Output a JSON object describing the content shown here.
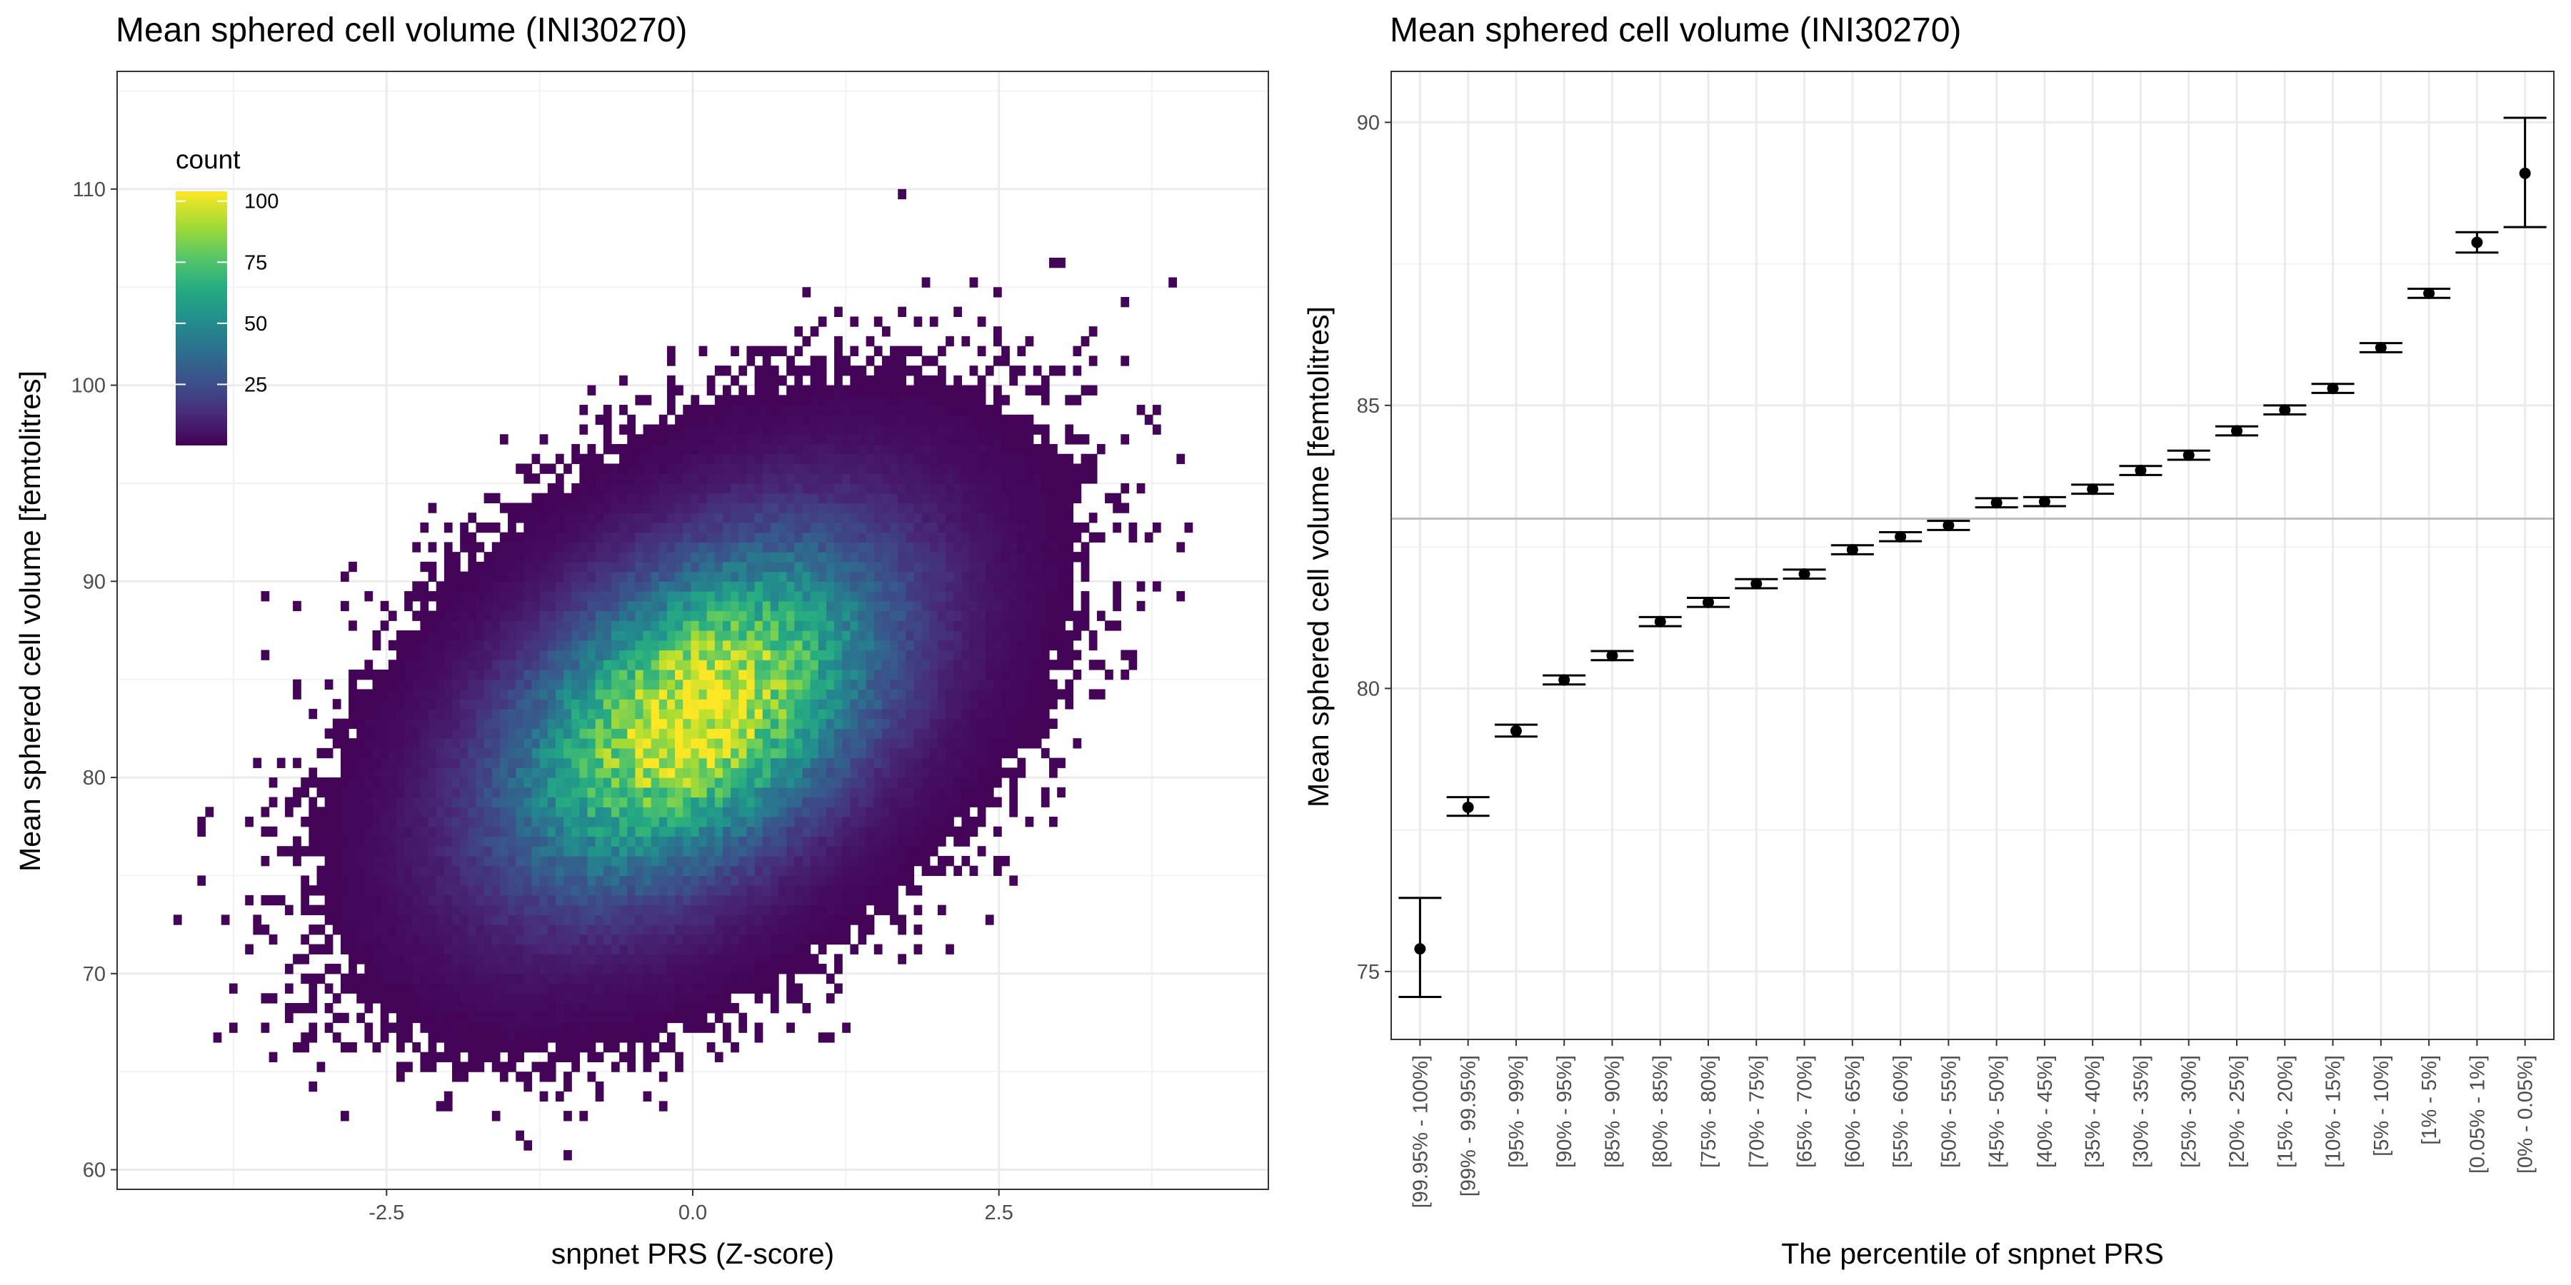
{
  "chart_data": [
    {
      "type": "heatmap",
      "title": "Mean sphered cell volume (INI30270)",
      "xlabel": "snpnet PRS (Z-score)",
      "ylabel": "Mean sphered cell volume [femtolitres]",
      "xlim": [
        -4.7,
        4.7
      ],
      "ylim": [
        59,
        116
      ],
      "x_ticks": [
        -2.5,
        0.0,
        2.5
      ],
      "x_tick_labels": [
        "-2.5",
        "0.0",
        "2.5"
      ],
      "y_ticks": [
        60,
        70,
        80,
        90,
        100,
        110
      ],
      "y_tick_labels": [
        "60",
        "70",
        "80",
        "90",
        "100",
        "110"
      ],
      "grid": true,
      "legend": {
        "title": "count",
        "position": "top-left",
        "min": 0,
        "max": 104,
        "breaks": [
          25,
          50,
          75,
          100
        ],
        "break_labels": [
          "25",
          "50",
          "75",
          "100"
        ],
        "colors": [
          "#440154",
          "#472c7a",
          "#3b518b",
          "#2c718e",
          "#21908d",
          "#27ad81",
          "#5cc863",
          "#aadc32",
          "#fde725"
        ]
      },
      "density_model": {
        "center_x": 0.0,
        "center_y": 83.0,
        "sd_x": 1.0,
        "sd_y": 5.6,
        "correlation": 0.45,
        "peak_count": 104,
        "sample_size": 100000
      }
    },
    {
      "type": "scatter",
      "title": "Mean sphered cell volume (INI30270)",
      "xlabel": "The percentile of snpnet PRS",
      "ylabel": "Mean sphered cell volume [femtolitres]",
      "ylim": [
        73.8,
        90.9
      ],
      "y_ticks": [
        75,
        80,
        85,
        90
      ],
      "y_tick_labels": [
        "75",
        "80",
        "85",
        "90"
      ],
      "reference_line": 83.0,
      "grid": true,
      "categories": [
        "[99.95% - 100%]",
        "[99% - 99.95%]",
        "[95% - 99%]",
        "[90% - 95%]",
        "[85% - 90%]",
        "[80% - 85%]",
        "[75% - 80%]",
        "[70% - 75%]",
        "[65% - 70%]",
        "[60% - 65%]",
        "[55% - 60%]",
        "[50% - 55%]",
        "[45% - 50%]",
        "[40% - 45%]",
        "[35% - 40%]",
        "[30% - 35%]",
        "[25% - 30%]",
        "[20% - 25%]",
        "[15% - 20%]",
        "[10% - 15%]",
        "[5% - 10%]",
        "[1% - 5%]",
        "[0.05% - 1%]",
        "[0% - 0.05%]"
      ],
      "series": [
        {
          "values": [
            75.4,
            77.9,
            79.25,
            80.15,
            80.58,
            81.18,
            81.52,
            81.85,
            82.02,
            82.45,
            82.68,
            82.88,
            83.28,
            83.3,
            83.52,
            83.85,
            84.12,
            84.55,
            84.92,
            85.3,
            86.02,
            86.98,
            87.88,
            89.1
          ],
          "lower": [
            74.55,
            77.75,
            79.15,
            80.07,
            80.5,
            81.1,
            81.44,
            81.77,
            81.94,
            82.37,
            82.6,
            82.8,
            83.2,
            83.22,
            83.44,
            83.77,
            84.04,
            84.47,
            84.84,
            85.22,
            85.94,
            86.9,
            87.7,
            88.15
          ],
          "upper": [
            76.3,
            78.08,
            79.36,
            80.23,
            80.66,
            81.26,
            81.6,
            81.93,
            82.1,
            82.53,
            82.76,
            82.96,
            83.36,
            83.38,
            83.6,
            83.93,
            84.2,
            84.63,
            85.0,
            85.38,
            86.1,
            87.06,
            88.06,
            90.08
          ]
        }
      ]
    }
  ]
}
